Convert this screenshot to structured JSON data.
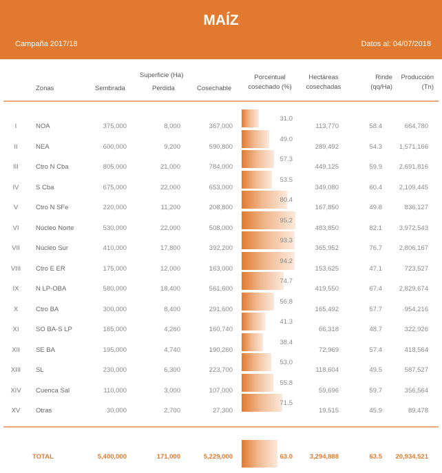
{
  "header": {
    "title": "MAÍZ",
    "campaign": "Campaña 2017/18",
    "date": "Datos al: 04/07/2018"
  },
  "columns": {
    "zonas": "Zonas",
    "superficie": "Superficie (Ha)",
    "sembrada": "Sembrada",
    "perdida": "Perdida",
    "cosechable": "Cosechable",
    "porcentual_1": "Porcentual",
    "porcentual_2": "cosechado (%)",
    "hect_1": "Hectáreas",
    "hect_2": "cosechadas",
    "rinde_1": "Rinde",
    "rinde_2": "(qq/Ha)",
    "prod_1": "Producción",
    "prod_2": "(Tn)"
  },
  "rows": [
    {
      "num": "I",
      "zona": "NOA",
      "sembrada": "375,000",
      "perdida": "8,000",
      "cosechable": "367,000",
      "pct": "31.0",
      "hect": "113,770",
      "rinde": "58.4",
      "prod": "664,780"
    },
    {
      "num": "II",
      "zona": "NEA",
      "sembrada": "600,000",
      "perdida": "9,200",
      "cosechable": "590,800",
      "pct": "49.0",
      "hect": "289,492",
      "rinde": "54.3",
      "prod": "1,571,166"
    },
    {
      "num": "III",
      "zona": "Ctro N Cba",
      "sembrada": "805,000",
      "perdida": "21,000",
      "cosechable": "784,000",
      "pct": "57.3",
      "hect": "449,125",
      "rinde": "59.9",
      "prod": "2,691,816"
    },
    {
      "num": "IV",
      "zona": "S Cba",
      "sembrada": "675,000",
      "perdida": "22,000",
      "cosechable": "653,000",
      "pct": "53.5",
      "hect": "349,080",
      "rinde": "60.4",
      "prod": "2,109,445"
    },
    {
      "num": "V",
      "zona": "Ctro N SFe",
      "sembrada": "220,000",
      "perdida": "11,200",
      "cosechable": "208,800",
      "pct": "80.4",
      "hect": "167,850",
      "rinde": "49.8",
      "prod": "836,127"
    },
    {
      "num": "VI",
      "zona": "Núcleo Norte",
      "sembrada": "530,000",
      "perdida": "22,000",
      "cosechable": "508,000",
      "pct": "95.2",
      "hect": "483,850",
      "rinde": "82.1",
      "prod": "3,972,543"
    },
    {
      "num": "VII",
      "zona": "Núcleo Sur",
      "sembrada": "410,000",
      "perdida": "17,800",
      "cosechable": "392,200",
      "pct": "93.3",
      "hect": "365,952",
      "rinde": "76.7",
      "prod": "2,806,167"
    },
    {
      "num": "VIII",
      "zona": "Ctro E ER",
      "sembrada": "175,000",
      "perdida": "12,000",
      "cosechable": "163,000",
      "pct": "94.2",
      "hect": "153,625",
      "rinde": "47.1",
      "prod": "723,527"
    },
    {
      "num": "IX",
      "zona": "N LP-OBA",
      "sembrada": "580,000",
      "perdida": "18,400",
      "cosechable": "561,600",
      "pct": "74.7",
      "hect": "419,550",
      "rinde": "67.4",
      "prod": "2,829,674"
    },
    {
      "num": "X",
      "zona": "Ctro BA",
      "sembrada": "300,000",
      "perdida": "8,400",
      "cosechable": "291,600",
      "pct": "56.8",
      "hect": "165,492",
      "rinde": "57.7",
      "prod": "954,216"
    },
    {
      "num": "XI",
      "zona": "SO BA-S LP",
      "sembrada": "165,000",
      "perdida": "4,260",
      "cosechable": "160,740",
      "pct": "41.3",
      "hect": "66,318",
      "rinde": "48.7",
      "prod": "322,926"
    },
    {
      "num": "XII",
      "zona": "SE BA",
      "sembrada": "195,000",
      "perdida": "4,740",
      "cosechable": "190,260",
      "pct": "38.4",
      "hect": "72,969",
      "rinde": "57.4",
      "prod": "418,564"
    },
    {
      "num": "XIII",
      "zona": "SL",
      "sembrada": "230,000",
      "perdida": "6,300",
      "cosechable": "223,700",
      "pct": "53.0",
      "hect": "118,604",
      "rinde": "49.5",
      "prod": "587,527"
    },
    {
      "num": "XIV",
      "zona": "Cuenca Sal",
      "sembrada": "110,000",
      "perdida": "3,000",
      "cosechable": "107,000",
      "pct": "55.8",
      "hect": "59,696",
      "rinde": "59.7",
      "prod": "356,564"
    },
    {
      "num": "XV",
      "zona": "Otras",
      "sembrada": "30,000",
      "perdida": "2,700",
      "cosechable": "27,300",
      "pct": "71.5",
      "hect": "19,515",
      "rinde": "45.9",
      "prod": "89,478"
    }
  ],
  "total": {
    "label": "TOTAL",
    "sembrada": "5,400,000",
    "perdida": "171,000",
    "cosechable": "5,229,000",
    "pct": "63.0",
    "hect": "3,294,888",
    "rinde": "63.5",
    "prod": "20,934,521"
  }
}
